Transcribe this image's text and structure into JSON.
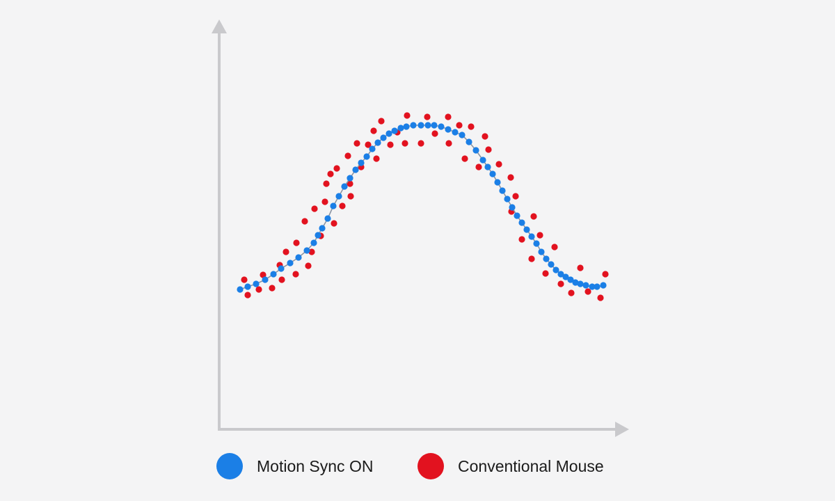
{
  "chart_data": {
    "type": "scatter",
    "title": "",
    "xlabel": "",
    "ylabel": "",
    "grid": false,
    "axis_ticks": false,
    "legend_position": "bottom",
    "series": [
      {
        "name": "Motion Sync ON",
        "color": "#1b7fe6",
        "connect_line": true,
        "points": [
          [
            345,
            416
          ],
          [
            356,
            412
          ],
          [
            368,
            408
          ],
          [
            381,
            402
          ],
          [
            393,
            394
          ],
          [
            404,
            386
          ],
          [
            417,
            378
          ],
          [
            429,
            370
          ],
          [
            441,
            360
          ],
          [
            451,
            349
          ],
          [
            457,
            338
          ],
          [
            463,
            328
          ],
          [
            471,
            314
          ],
          [
            479,
            296
          ],
          [
            487,
            282
          ],
          [
            495,
            268
          ],
          [
            503,
            256
          ],
          [
            511,
            244
          ],
          [
            519,
            234
          ],
          [
            527,
            225
          ],
          [
            535,
            214
          ],
          [
            543,
            205
          ],
          [
            551,
            198
          ],
          [
            559,
            192
          ],
          [
            567,
            188
          ],
          [
            576,
            184
          ],
          [
            584,
            182
          ],
          [
            594,
            180
          ],
          [
            605,
            180
          ],
          [
            615,
            180
          ],
          [
            624,
            180
          ],
          [
            634,
            182
          ],
          [
            644,
            186
          ],
          [
            654,
            190
          ],
          [
            664,
            194
          ],
          [
            674,
            204
          ],
          [
            684,
            216
          ],
          [
            694,
            230
          ],
          [
            701,
            240
          ],
          [
            708,
            250
          ],
          [
            715,
            262
          ],
          [
            722,
            274
          ],
          [
            729,
            286
          ],
          [
            736,
            298
          ],
          [
            743,
            310
          ],
          [
            750,
            320
          ],
          [
            757,
            330
          ],
          [
            764,
            340
          ],
          [
            771,
            350
          ],
          [
            778,
            362
          ],
          [
            785,
            372
          ],
          [
            792,
            380
          ],
          [
            799,
            388
          ],
          [
            806,
            394
          ],
          [
            813,
            398
          ],
          [
            820,
            402
          ],
          [
            827,
            406
          ],
          [
            834,
            408
          ],
          [
            842,
            410
          ],
          [
            851,
            412
          ],
          [
            858,
            412
          ],
          [
            867,
            410
          ]
        ]
      },
      {
        "name": "Conventional Mouse",
        "color": "#e2121f",
        "connect_line": false,
        "points": [
          [
            351,
            402
          ],
          [
            356,
            424
          ],
          [
            372,
            416
          ],
          [
            378,
            395
          ],
          [
            391,
            414
          ],
          [
            402,
            381
          ],
          [
            411,
            362
          ],
          [
            405,
            402
          ],
          [
            425,
            394
          ],
          [
            426,
            349
          ],
          [
            438,
            318
          ],
          [
            443,
            382
          ],
          [
            448,
            362
          ],
          [
            452,
            300
          ],
          [
            461,
            339
          ],
          [
            467,
            290
          ],
          [
            469,
            264
          ],
          [
            475,
            250
          ],
          [
            480,
            321
          ],
          [
            484,
            242
          ],
          [
            492,
            296
          ],
          [
            500,
            224
          ],
          [
            503,
            264
          ],
          [
            504,
            282
          ],
          [
            513,
            206
          ],
          [
            519,
            240
          ],
          [
            529,
            208
          ],
          [
            537,
            188
          ],
          [
            541,
            228
          ],
          [
            548,
            174
          ],
          [
            561,
            208
          ],
          [
            571,
            190
          ],
          [
            582,
            206
          ],
          [
            585,
            166
          ],
          [
            605,
            206
          ],
          [
            614,
            168
          ],
          [
            625,
            192
          ],
          [
            644,
            168
          ],
          [
            645,
            206
          ],
          [
            660,
            180
          ],
          [
            668,
            228
          ],
          [
            677,
            182
          ],
          [
            688,
            240
          ],
          [
            697,
            196
          ],
          [
            702,
            215
          ],
          [
            717,
            236
          ],
          [
            734,
            255
          ],
          [
            735,
            304
          ],
          [
            741,
            282
          ],
          [
            750,
            344
          ],
          [
            764,
            372
          ],
          [
            767,
            311
          ],
          [
            776,
            338
          ],
          [
            784,
            393
          ],
          [
            797,
            355
          ],
          [
            806,
            408
          ],
          [
            821,
            421
          ],
          [
            834,
            385
          ],
          [
            845,
            419
          ],
          [
            863,
            428
          ],
          [
            870,
            394
          ]
        ]
      }
    ]
  }
}
